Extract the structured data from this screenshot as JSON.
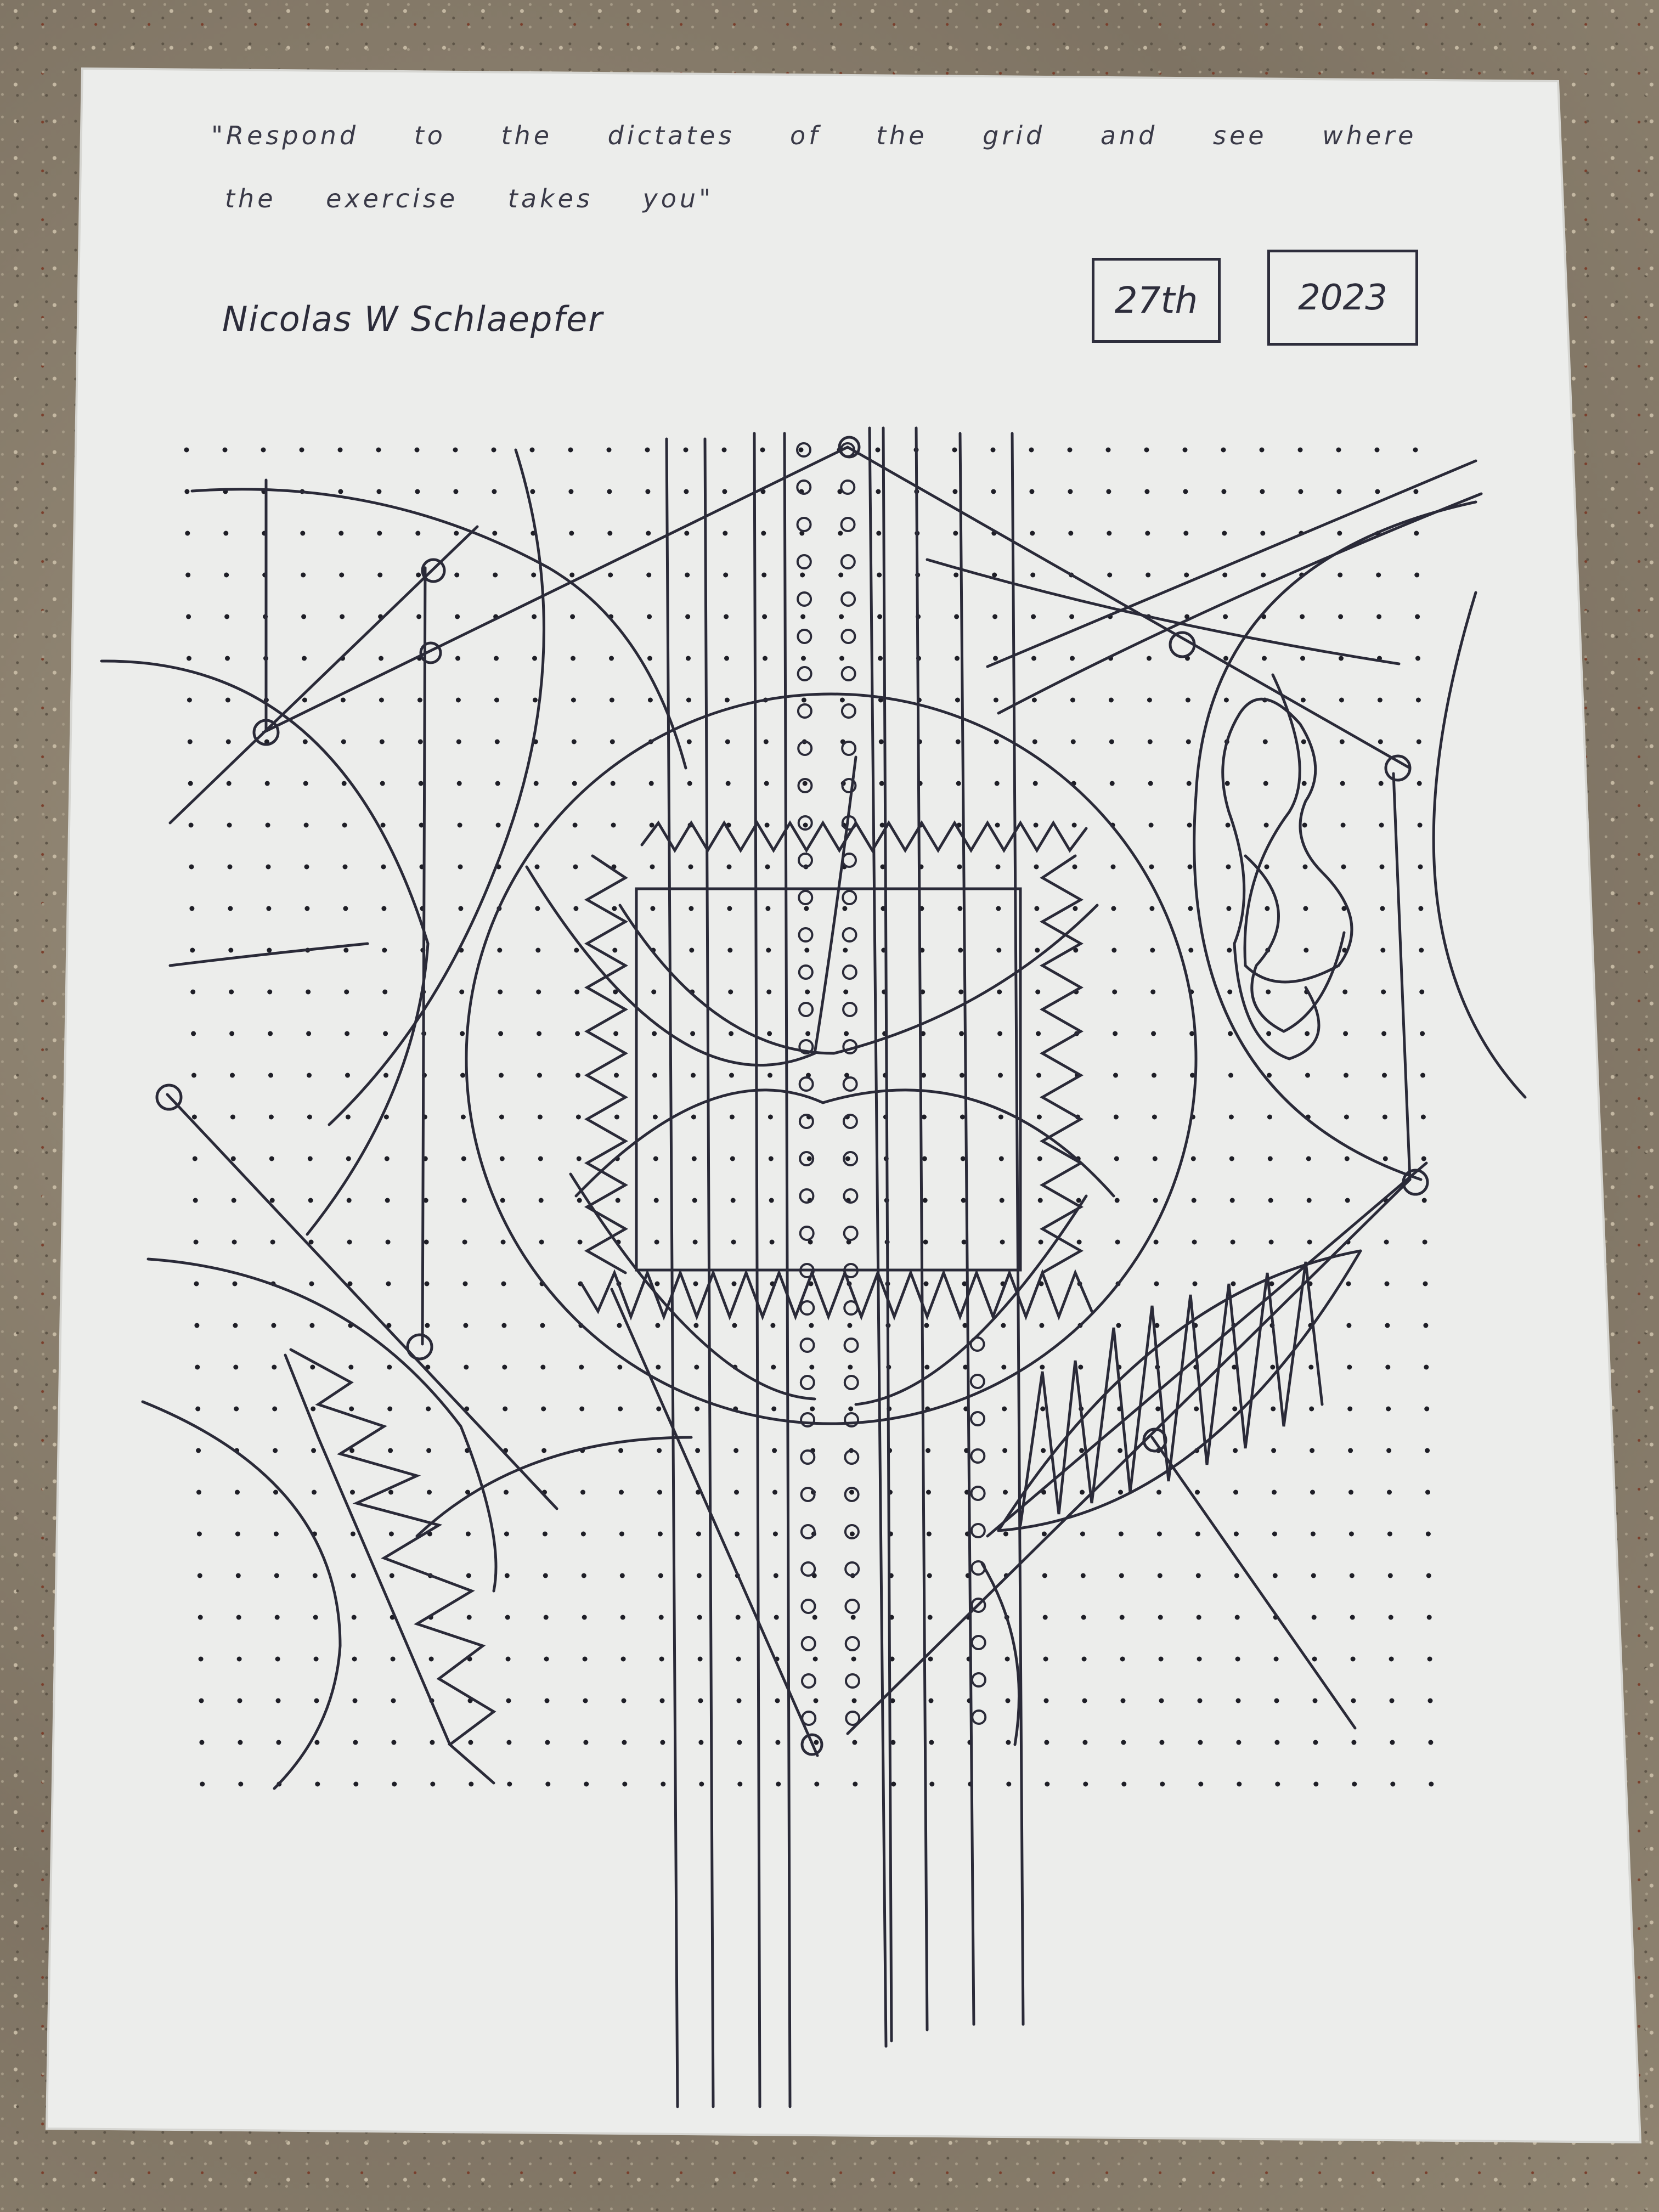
{
  "handwriting": {
    "quote_line1": "\"Respond to the dictates of the grid and see where",
    "quote_line2": "the exercise takes you\"",
    "signature": "Nicolas W Schlaepfer",
    "day_box": "27th",
    "year_box": "2023"
  },
  "colors": {
    "paper": "#ecedeb",
    "ink": "#2a2a38",
    "counter": "#8e8270"
  }
}
